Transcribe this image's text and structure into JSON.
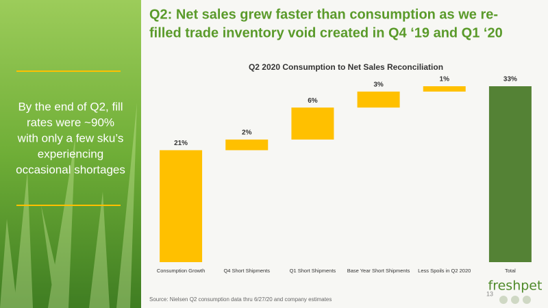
{
  "slide": {
    "title_lines": [
      "Q2:  Net sales grew faster than consumption as we re-",
      "filled trade inventory void created in Q4 ‘19 and Q1 ‘20"
    ],
    "side_text_lines": [
      "By the end of Q2, fill",
      "rates were ~90%",
      "with only a few sku’s",
      "experiencing",
      "occasional shortages"
    ],
    "source": "Source:  Nielsen Q2 consumption data thru 6/27/20 and company estimates",
    "page_number": "13",
    "logo": "freshpet"
  },
  "chart_data": {
    "type": "waterfall",
    "title": "Q2 2020 Consumption to Net Sales Reconciliation",
    "categories": [
      "Consumption Growth",
      "Q4 Short Shipments",
      "Q1 Short Shipments",
      "Base Year Short Shipments",
      "Less Spoils in Q2 2020",
      "Total"
    ],
    "values": [
      21,
      2,
      6,
      3,
      1,
      33
    ],
    "value_labels": [
      "21%",
      "2%",
      "6%",
      "3%",
      "1%",
      "33%"
    ],
    "is_total": [
      false,
      false,
      false,
      false,
      false,
      true
    ],
    "color": "#ffc000",
    "total_color": "#548235"
  }
}
